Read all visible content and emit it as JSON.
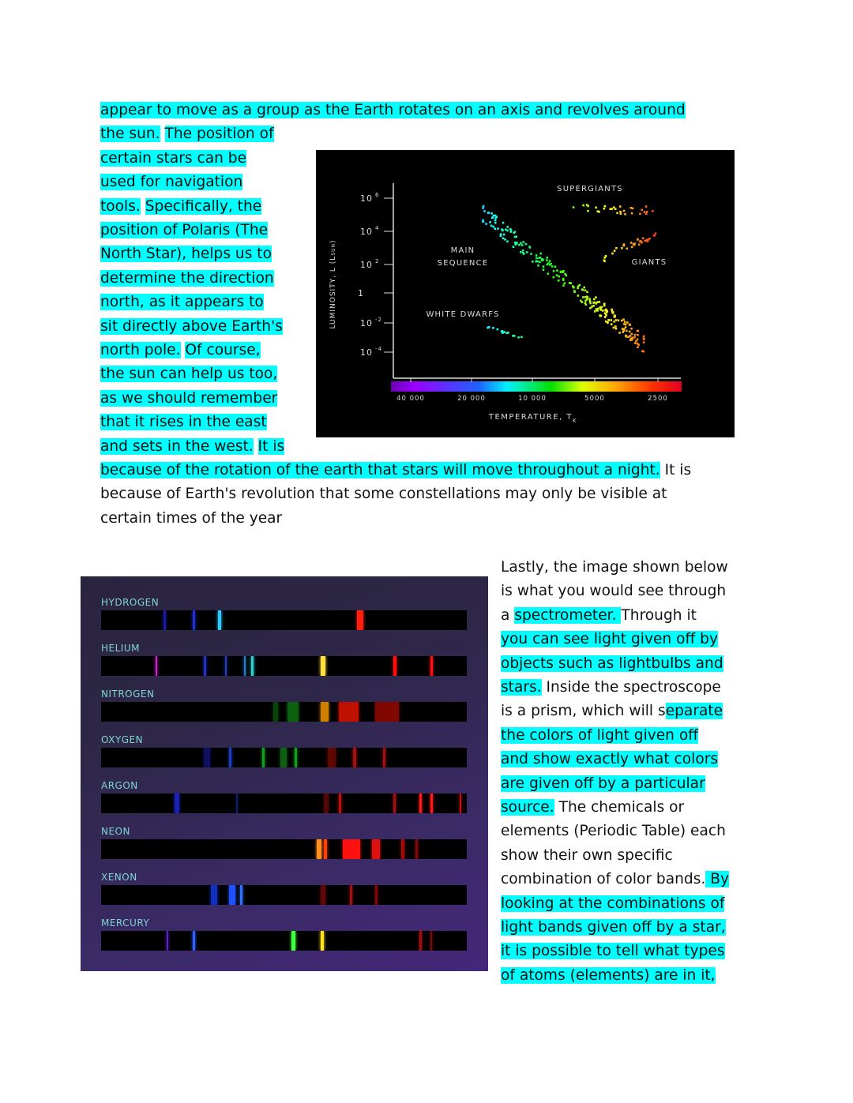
{
  "text_top": [
    [
      {
        "t": "appear to move as a group as the Earth rotates on an axis and revolves around",
        "hl": true
      }
    ],
    [
      {
        "t": "the sun.",
        "hl": true
      },
      {
        "t": " ",
        "hl": false
      },
      {
        "t": "The position of",
        "hl": true
      }
    ],
    [
      {
        "t": "certain stars can be",
        "hl": true
      }
    ],
    [
      {
        "t": "used for navigation",
        "hl": true
      }
    ],
    [
      {
        "t": "tools.",
        "hl": true
      },
      {
        "t": " ",
        "hl": false
      },
      {
        "t": "Specifically, the",
        "hl": true
      }
    ],
    [
      {
        "t": "position of Polaris (The",
        "hl": true
      }
    ],
    [
      {
        "t": "North Star), helps us to",
        "hl": true
      }
    ],
    [
      {
        "t": "determine the direction",
        "hl": true
      }
    ],
    [
      {
        "t": "north, as it appears to",
        "hl": true
      }
    ],
    [
      {
        "t": "sit directly above Earth's",
        "hl": true
      }
    ],
    [
      {
        "t": "north pole.",
        "hl": true
      },
      {
        "t": " ",
        "hl": false
      },
      {
        "t": "Of course,",
        "hl": true
      }
    ],
    [
      {
        "t": "the sun can help us too,",
        "hl": true
      }
    ],
    [
      {
        "t": "as we should remember",
        "hl": true
      }
    ],
    [
      {
        "t": "that it rises in the east",
        "hl": true
      }
    ],
    [
      {
        "t": "and sets in the west.",
        "hl": true
      },
      {
        "t": " ",
        "hl": false
      },
      {
        "t": "It is",
        "hl": true
      }
    ],
    [
      {
        "t": "because of the rotation of the earth that stars will move throughout a night.",
        "hl": true
      },
      {
        "t": " It is",
        "hl": false
      }
    ],
    [
      {
        "t": "because of Earth's revolution that some constellations may only be visible at",
        "hl": false
      }
    ],
    [
      {
        "t": "certain times of the year",
        "hl": false
      }
    ]
  ],
  "text_right": [
    [
      {
        "t": "Lastly, the image shown below",
        "hl": false
      }
    ],
    [
      {
        "t": "is what you would see through",
        "hl": false
      }
    ],
    [
      {
        "t": "a ",
        "hl": false
      },
      {
        "t": "spectrometer. ",
        "hl": true
      },
      {
        "t": " Through it",
        "hl": false
      }
    ],
    [
      {
        "t": "you can see light given off by",
        "hl": true
      }
    ],
    [
      {
        "t": "objects such as lightbulbs and",
        "hl": true
      }
    ],
    [
      {
        "t": "stars.",
        "hl": true
      },
      {
        "t": " Inside the spectroscope",
        "hl": false
      }
    ],
    [
      {
        "t": "is a prism, which will s",
        "hl": false
      },
      {
        "t": "eparate",
        "hl": true
      }
    ],
    [
      {
        "t": "the colors of light given off",
        "hl": true
      }
    ],
    [
      {
        "t": "and show exactly what colors",
        "hl": true
      }
    ],
    [
      {
        "t": "are given off by a particular",
        "hl": true
      }
    ],
    [
      {
        "t": "source.",
        "hl": true
      },
      {
        "t": " The chemicals or",
        "hl": false
      }
    ],
    [
      {
        "t": "elements (Periodic Table) each",
        "hl": false
      }
    ],
    [
      {
        "t": "show their own specific",
        "hl": false
      }
    ],
    [
      {
        "t": "combination of color bands.",
        "hl": false
      },
      {
        "t": " By",
        "hl": true
      }
    ],
    [
      {
        "t": "looking at the combinations of",
        "hl": true
      }
    ],
    [
      {
        "t": "light bands given off by a star,",
        "hl": true
      }
    ],
    [
      {
        "t": "it is possible to tell what types",
        "hl": true
      }
    ],
    [
      {
        "t": "of atoms (elements) are in it,",
        "hl": true
      }
    ]
  ],
  "colors": {
    "highlight": "#00ffff",
    "text": "#111111"
  },
  "hr_diagram": {
    "ylabel": "LUMINOSITY, L (L",
    "ylabel_sub": "SUN",
    "ylabel_end": ")",
    "y_ticks": [
      {
        "base": "10",
        "exp": "6"
      },
      {
        "base": "10",
        "exp": "4"
      },
      {
        "base": "10",
        "exp": "2"
      },
      {
        "base": "1",
        "exp": ""
      },
      {
        "base": "10",
        "exp": "-2"
      },
      {
        "base": "10",
        "exp": "-4"
      }
    ],
    "x_ticks": [
      "40 000",
      "20 000",
      "10 000",
      "5000",
      "2500"
    ],
    "xlabel": "TEMPERATURE, T",
    "xlabel_sub": "K",
    "labels": {
      "supergiants": "SUPERGIANTS",
      "main1": "MAIN",
      "main2": "SEQUENCE",
      "giants": "GIANTS",
      "white_dwarfs": "WHITE DWARFS"
    }
  },
  "spectra": {
    "elements": [
      "HYDROGEN",
      "HELIUM",
      "NITROGEN",
      "OXYGEN",
      "ARGON",
      "NEON",
      "XENON",
      "MERCURY"
    ]
  }
}
